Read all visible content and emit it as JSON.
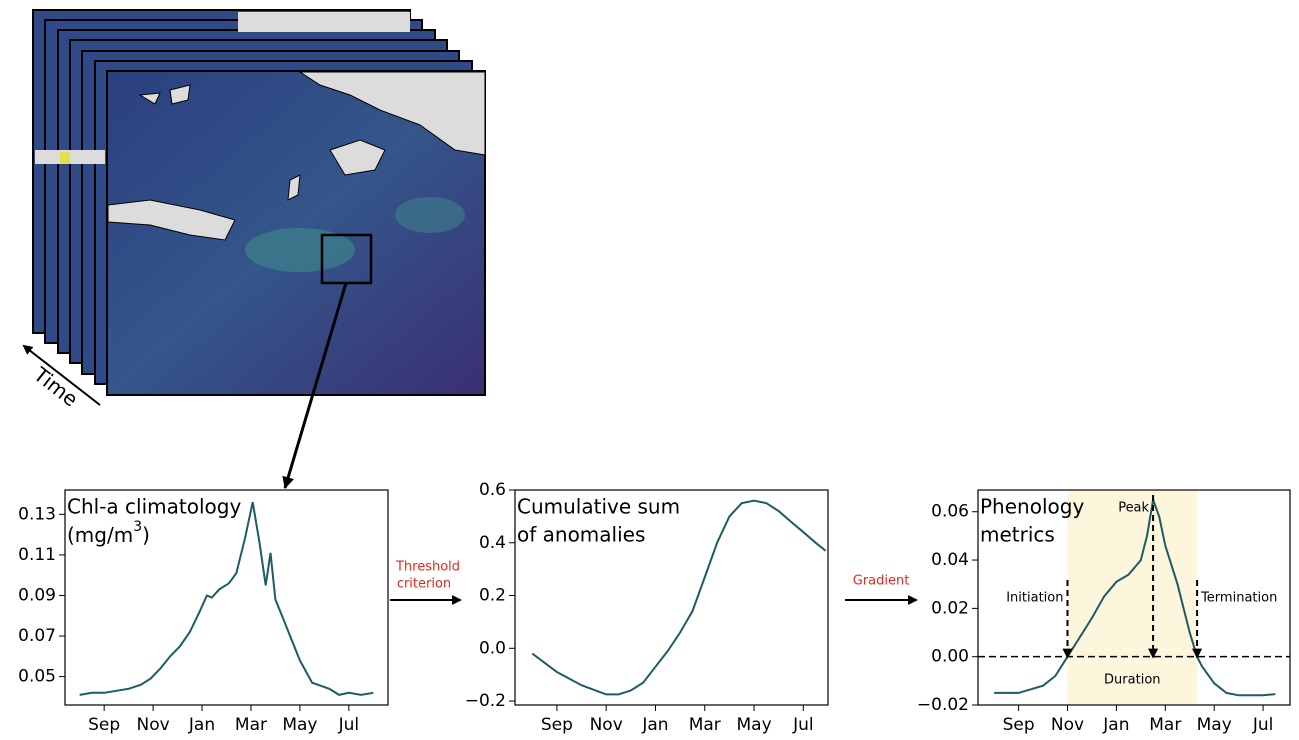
{
  "annotations": {
    "time": "Time",
    "step1": [
      "Threshold",
      "criterion"
    ],
    "step2": "Gradient"
  },
  "chart_data": [
    {
      "type": "line",
      "title": "Chl-a climatology",
      "unit": {
        "base": "(mg/m",
        "sup": "3",
        "end": ")"
      },
      "color": "#1d5c63",
      "x": [
        0,
        0.5,
        1,
        1.5,
        2,
        2.5,
        2.9,
        3.3,
        3.7,
        4.1,
        4.5,
        4.9,
        5.2,
        5.4,
        5.7,
        6.1,
        6.4,
        6.75,
        7.07,
        7.35,
        7.6,
        7.8,
        8.0,
        8.3,
        8.6,
        9.0,
        9.5,
        10.2,
        10.6,
        11.0,
        11.5,
        12.0
      ],
      "values": [
        0.041,
        0.042,
        0.042,
        0.043,
        0.044,
        0.046,
        0.049,
        0.054,
        0.06,
        0.065,
        0.072,
        0.082,
        0.09,
        0.089,
        0.093,
        0.096,
        0.101,
        0.118,
        0.136,
        0.116,
        0.095,
        0.111,
        0.088,
        0.079,
        0.07,
        0.058,
        0.047,
        0.044,
        0.041,
        0.042,
        0.041,
        0.042
      ],
      "xlim": [
        -0.6,
        12.6
      ],
      "ylim": [
        0.036,
        0.142
      ],
      "xticks": [
        {
          "value": 1,
          "label": "Sep"
        },
        {
          "value": 3,
          "label": "Nov"
        },
        {
          "value": 5,
          "label": "Jan"
        },
        {
          "value": 7,
          "label": "Mar"
        },
        {
          "value": 9,
          "label": "May"
        },
        {
          "value": 11,
          "label": "Jul"
        }
      ],
      "yticks": [
        0.05,
        0.07,
        0.09,
        0.11,
        0.13
      ]
    },
    {
      "type": "line",
      "title": [
        "Cumulative sum",
        "of anomalies"
      ],
      "color": "#1d5c63",
      "x": [
        0,
        1,
        2,
        3,
        3.5,
        4,
        4.5,
        5,
        5.5,
        6,
        6.5,
        7,
        7.5,
        8,
        8.5,
        9,
        9.5,
        10,
        10.5,
        11,
        11.5,
        11.9
      ],
      "values": [
        -0.02,
        -0.09,
        -0.14,
        -0.175,
        -0.175,
        -0.16,
        -0.13,
        -0.07,
        -0.01,
        0.06,
        0.14,
        0.27,
        0.4,
        0.5,
        0.55,
        0.56,
        0.55,
        0.52,
        0.48,
        0.44,
        0.4,
        0.37
      ],
      "xlim": [
        -0.7,
        12
      ],
      "ylim": [
        -0.215,
        0.6
      ],
      "xticks": [
        {
          "value": 1,
          "label": "Sep"
        },
        {
          "value": 3,
          "label": "Nov"
        },
        {
          "value": 5,
          "label": "Jan"
        },
        {
          "value": 7,
          "label": "Mar"
        },
        {
          "value": 9,
          "label": "May"
        },
        {
          "value": 11,
          "label": "Jul"
        }
      ],
      "yticks": [
        {
          "value": -0.2,
          "label": "−0.2"
        },
        {
          "value": 0,
          "label": "0.0"
        },
        0.2,
        0.4,
        0.6
      ]
    },
    {
      "type": "line",
      "title": [
        "Phenology",
        "metrics"
      ],
      "color": "#1d5c63",
      "x": [
        0,
        1,
        2,
        2.5,
        3,
        3.5,
        4,
        4.5,
        5,
        5.5,
        6,
        6.25,
        6.5,
        6.75,
        7,
        7.5,
        8,
        8.3,
        8.5,
        9,
        9.5,
        10,
        11,
        11.5
      ],
      "values": [
        -0.015,
        -0.015,
        -0.012,
        -0.008,
        0,
        0.008,
        0.016,
        0.025,
        0.031,
        0.034,
        0.04,
        0.05,
        0.065,
        0.058,
        0.046,
        0.03,
        0.01,
        0,
        -0.004,
        -0.011,
        -0.015,
        -0.016,
        -0.016,
        -0.0155
      ],
      "xlim": [
        -0.66,
        12.1
      ],
      "ylim": [
        -0.02,
        0.069
      ],
      "xticks": [
        {
          "value": 1,
          "label": "Sep"
        },
        {
          "value": 3,
          "label": "Nov"
        },
        {
          "value": 5,
          "label": "Jan"
        },
        {
          "value": 7,
          "label": "Mar"
        },
        {
          "value": 9,
          "label": "May"
        },
        {
          "value": 11,
          "label": "Jul"
        }
      ],
      "yticks": [
        {
          "value": -0.02,
          "label": "−0.02"
        },
        {
          "value": 0,
          "label": "0.00"
        },
        0.02,
        0.04,
        0.06
      ],
      "hline": 0,
      "span": {
        "label": "Duration",
        "x": [
          3.0,
          8.3
        ],
        "color": "#fdf6dc"
      },
      "markers": [
        {
          "label": "Initiation",
          "x": 3.0
        },
        {
          "label": "Peak",
          "x": 6.5
        },
        {
          "label": "Termination",
          "x": 8.3
        }
      ]
    }
  ]
}
